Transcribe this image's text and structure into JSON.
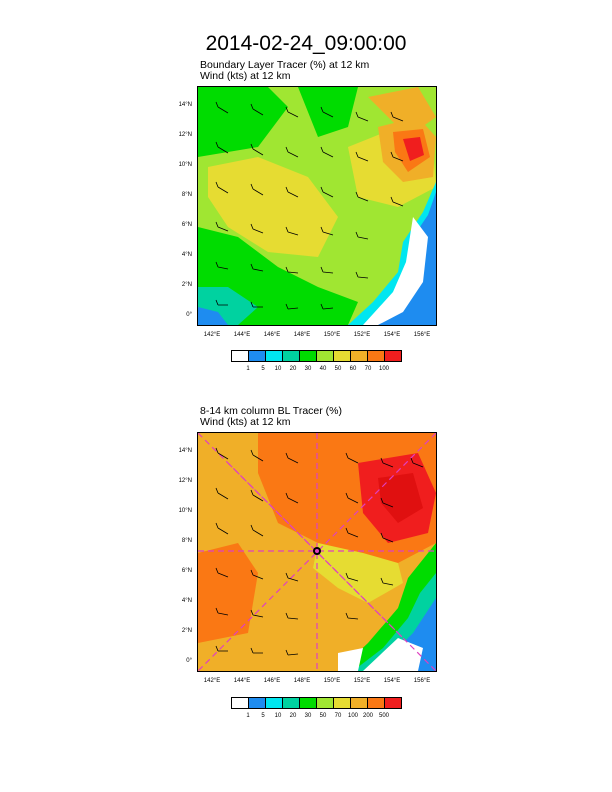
{
  "page_title": "2014-02-24_09:00:00",
  "panels": [
    {
      "id": "top",
      "title1": "Boundary Layer Tracer   (%)     at   12 km",
      "title2": "Wind   (kts)     at   12 km",
      "lat_ticks": [
        "14°N",
        "12°N",
        "10°N",
        "8°N",
        "6°N",
        "4°N",
        "2°N",
        "0°"
      ],
      "lon_ticks": [
        "142°E",
        "144°E",
        "146°E",
        "148°E",
        "150°E",
        "152°E",
        "154°E",
        "156°E"
      ],
      "colorbar_labels": [
        "1",
        "5",
        "10",
        "20",
        "30",
        "40",
        "50",
        "60",
        "70",
        "100"
      ],
      "colors": [
        "#ffffff",
        "#1e8cf0",
        "#00e6f0",
        "#00d2a0",
        "#00dc00",
        "#a0e632",
        "#e6dc32",
        "#f0af28",
        "#fa7814",
        "#f01e1e"
      ]
    },
    {
      "id": "bottom",
      "title1": "8-14 km column BL Tracer   (%)",
      "title2": "Wind   (kts)     at   12 km",
      "lat_ticks": [
        "14°N",
        "12°N",
        "10°N",
        "8°N",
        "6°N",
        "4°N",
        "2°N",
        "0°"
      ],
      "lon_ticks": [
        "142°E",
        "144°E",
        "146°E",
        "148°E",
        "150°E",
        "152°E",
        "154°E",
        "156°E"
      ],
      "colorbar_labels": [
        "1",
        "5",
        "10",
        "20",
        "30",
        "50",
        "70",
        "100",
        "200",
        "500"
      ],
      "colors": [
        "#ffffff",
        "#1e8cf0",
        "#00e6f0",
        "#00d2a0",
        "#00dc00",
        "#a0e632",
        "#e6dc32",
        "#f0af28",
        "#fa7814",
        "#f01e1e"
      ]
    }
  ]
}
